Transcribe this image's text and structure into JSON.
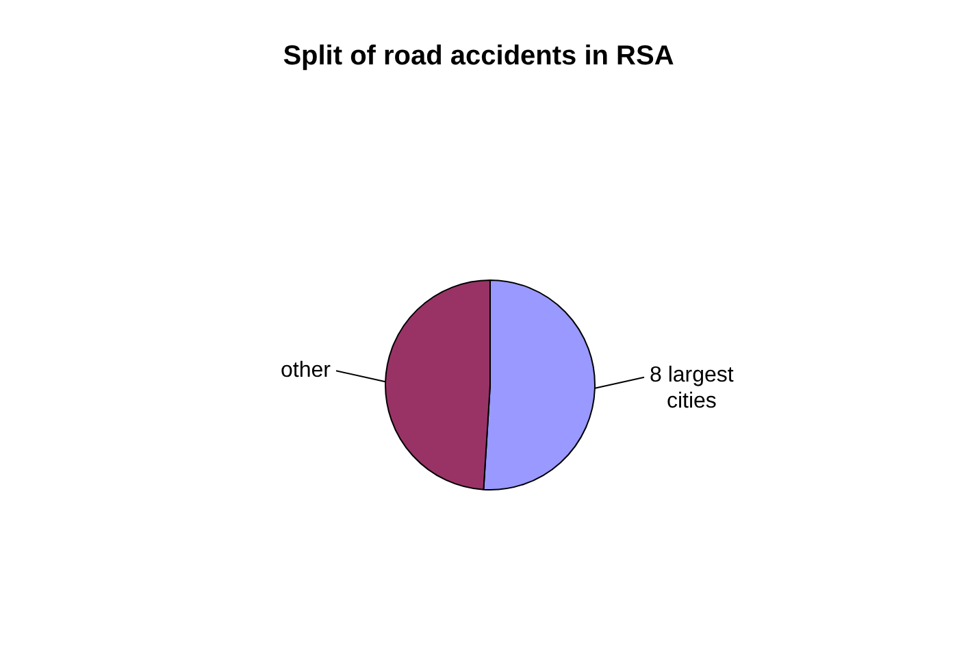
{
  "chart_data": {
    "type": "pie",
    "title": "Split of road accidents in RSA",
    "categories": [
      "8 largest cities",
      "other"
    ],
    "values": [
      51,
      49
    ],
    "colors": [
      "#9999ff",
      "#993366"
    ]
  }
}
